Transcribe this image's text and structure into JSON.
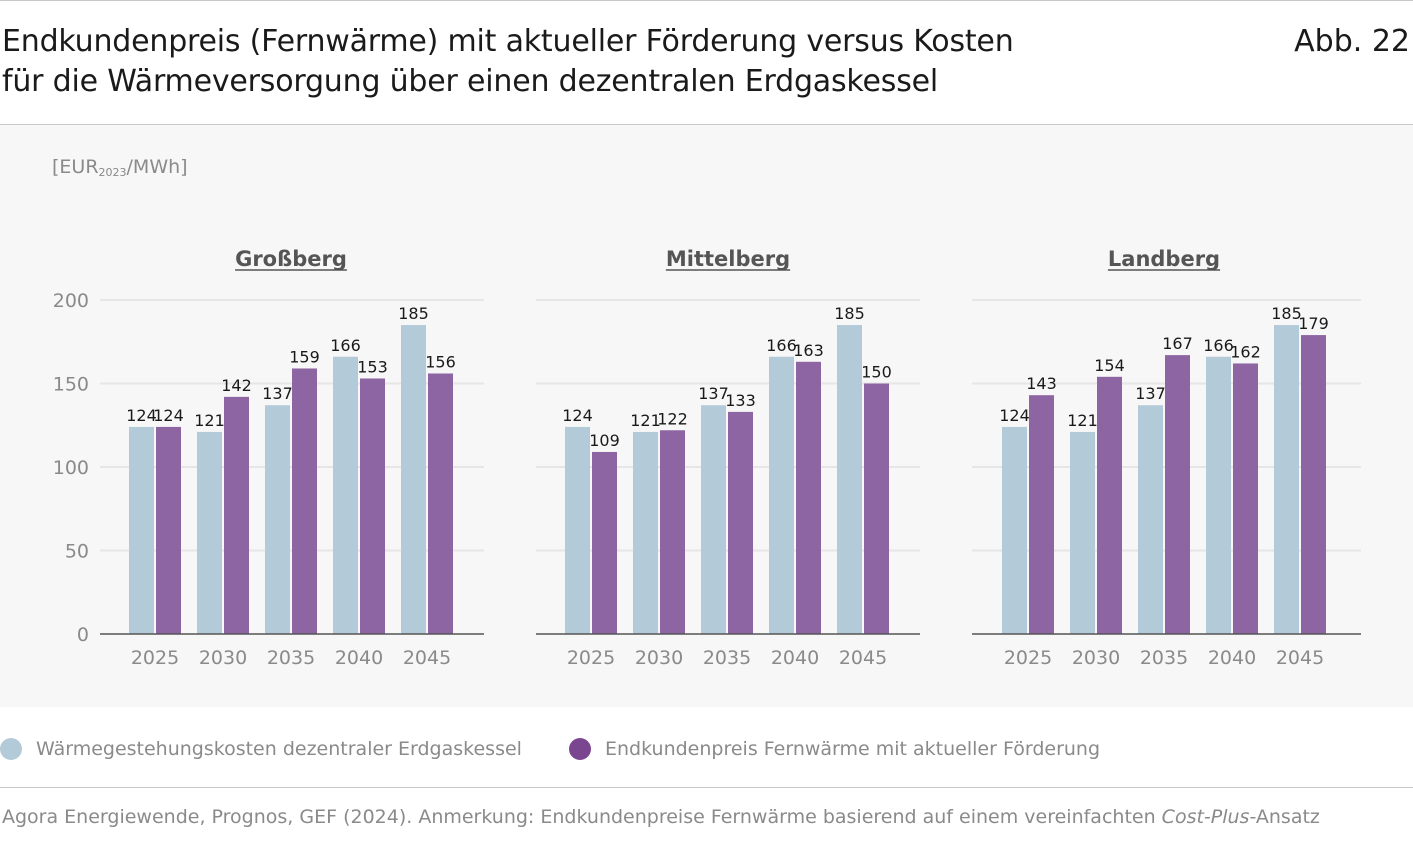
{
  "header": {
    "title_line1": "Endkundenpreis (Fernwärme) mit aktueller Förderung versus Kosten",
    "title_line2": "für die Wärmeversorgung über einen dezentralen Erdgaskessel",
    "figure_number": "Abb. 22"
  },
  "unit": {
    "prefix": "[EUR",
    "subscript": "2023",
    "suffix": "/MWh]"
  },
  "colors": {
    "series1": "#b3cad8",
    "series2": "#8e65a3",
    "legend_dot2": "#7b4690",
    "grid": "#e6e6e6",
    "axis": "#555555"
  },
  "chart_data": [
    {
      "type": "bar",
      "title": "Großberg",
      "categories": [
        "2025",
        "2030",
        "2035",
        "2040",
        "2045"
      ],
      "series": [
        {
          "name": "Wärmegestehungskosten dezentraler Erdgaskessel",
          "values": [
            124,
            121,
            137,
            166,
            185
          ]
        },
        {
          "name": "Endkundenpreis Fernwärme mit aktueller Förderung",
          "values": [
            124,
            142,
            159,
            153,
            156
          ]
        }
      ],
      "ylim": [
        0,
        200
      ],
      "yticks": [
        "0",
        "50",
        "100",
        "150",
        "200"
      ]
    },
    {
      "type": "bar",
      "title": "Mittelberg",
      "categories": [
        "2025",
        "2030",
        "2035",
        "2040",
        "2045"
      ],
      "series": [
        {
          "name": "Wärmegestehungskosten dezentraler Erdgaskessel",
          "values": [
            124,
            121,
            137,
            166,
            185
          ]
        },
        {
          "name": "Endkundenpreis Fernwärme mit aktueller Förderung",
          "values": [
            109,
            122,
            133,
            163,
            150
          ]
        }
      ],
      "ylim": [
        0,
        200
      ]
    },
    {
      "type": "bar",
      "title": "Landberg",
      "categories": [
        "2025",
        "2030",
        "2035",
        "2040",
        "2045"
      ],
      "series": [
        {
          "name": "Wärmegestehungskosten dezentraler Erdgaskessel",
          "values": [
            124,
            121,
            137,
            166,
            185
          ]
        },
        {
          "name": "Endkundenpreis Fernwärme mit aktueller Förderung",
          "values": [
            143,
            154,
            167,
            162,
            179
          ]
        }
      ],
      "ylim": [
        0,
        200
      ]
    }
  ],
  "legend": [
    {
      "label": "Wärmegestehungskosten dezentraler Erdgaskessel"
    },
    {
      "label": "Endkundenpreis Fernwärme mit aktueller Förderung"
    }
  ],
  "source": {
    "text": "Agora Energiewende, Prognos, GEF (2024). Anmerkung: Endkundenpreise Fernwärme basierend auf einem vereinfachten ",
    "italic": "Cost-Plus",
    "suffix": "-Ansatz"
  }
}
